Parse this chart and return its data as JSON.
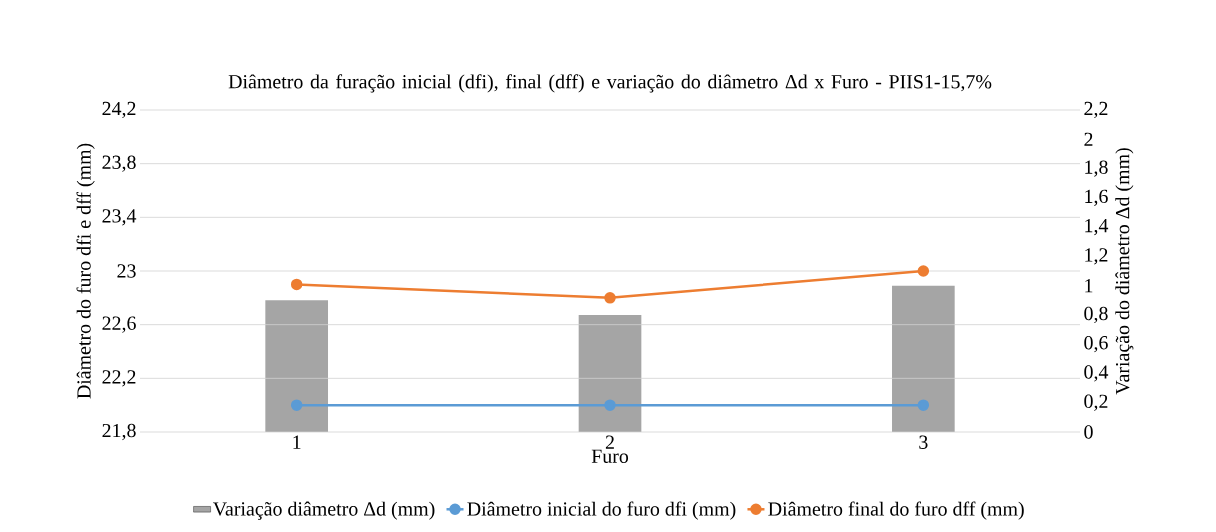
{
  "chart_data": {
    "type": "line",
    "title": "Diâmetro da furação inicial (dfi), final (dff) e variação do diâmetro Δd x Furo - PIIS1-15,7%",
    "xlabel": "Furo",
    "ylabel": "Diâmetro do furo dfi e dff (mm)",
    "y2label": "Variação do diâmetro Δd (mm)",
    "categories": [
      "1",
      "2",
      "3"
    ],
    "series": [
      {
        "name": "Variação diâmetro Δd (mm)",
        "type": "bar",
        "axis": "y2",
        "color": "#a5a5a5",
        "values": [
          0.9,
          0.8,
          1.0
        ]
      },
      {
        "name": "Diâmetro inicial do furo dfi (mm)",
        "color": "#5b9bd5",
        "values": [
          22.0,
          22.0,
          22.0
        ]
      },
      {
        "name": "Diâmetro final do furo dff (mm)",
        "color": "#ed7d31",
        "values": [
          22.9,
          22.8,
          23.0
        ]
      }
    ],
    "ylim": [
      21.8,
      24.2
    ],
    "yticks": [
      {
        "value": 21.8,
        "label": "21,8"
      },
      {
        "value": 22.2,
        "label": "22,2"
      },
      {
        "value": 22.6,
        "label": "22,6"
      },
      23,
      {
        "value": 23.4,
        "label": "23,4"
      },
      {
        "value": 23.8,
        "label": "23,8"
      },
      {
        "value": 24.2,
        "label": "24,2"
      }
    ],
    "y2lim": [
      0,
      2.2
    ],
    "y2ticks": [
      0,
      {
        "value": 0.2,
        "label": "0,2"
      },
      {
        "value": 0.4,
        "label": "0,4"
      },
      {
        "value": 0.6,
        "label": "0,6"
      },
      {
        "value": 0.8,
        "label": "0,8"
      },
      1,
      {
        "value": 1.2,
        "label": "1,2"
      },
      {
        "value": 1.4,
        "label": "1,4"
      },
      {
        "value": 1.6,
        "label": "1,6"
      },
      {
        "value": 1.8,
        "label": "1,8"
      },
      2,
      {
        "value": 2.2,
        "label": "2,2"
      }
    ],
    "grid": "y",
    "legend": "bottom",
    "marker": "circle",
    "line_style": "solid"
  }
}
